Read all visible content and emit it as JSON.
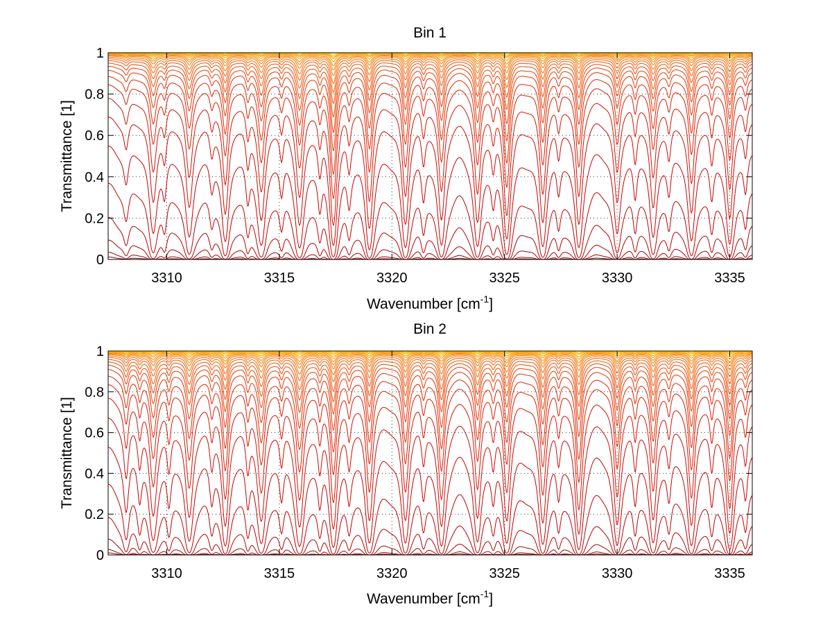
{
  "chart_data": [
    {
      "type": "line",
      "title": "Bin 1",
      "xlabel": "Wavenumber [cm",
      "xlabel_sup": "-1",
      "xlabel_end": "]",
      "ylabel": "Transmittance [1]",
      "xlim": [
        3307.4,
        3336.0
      ],
      "ylim": [
        0,
        1
      ],
      "xticks": [
        3310,
        3315,
        3320,
        3325,
        3330,
        3335
      ],
      "xtick_labels": [
        "3310",
        "3315",
        "3320",
        "3325",
        "3330",
        "3335"
      ],
      "yticks": [
        0,
        0.2,
        0.4,
        0.6,
        0.8,
        1
      ],
      "ytick_labels": [
        "0",
        "0.2",
        "0.4",
        "0.6",
        "0.8",
        "1"
      ],
      "grid": true,
      "grid_style": "dotted",
      "legend": "none",
      "line_colors": [
        "#8b0000",
        "#9a0000",
        "#a80000",
        "#b50000",
        "#bf0000",
        "#c80000",
        "#cf0800",
        "#d51200",
        "#db1c00",
        "#e02600",
        "#e43000",
        "#e83b00",
        "#eb4600",
        "#ee5100",
        "#f05c00",
        "#f26700",
        "#f47200",
        "#f57e00",
        "#f68a00",
        "#f79600",
        "#f8a200",
        "#f9ae00",
        "#fab900",
        "#fbc500"
      ],
      "series_continuum": [
        0.012,
        0.035,
        0.095,
        0.205,
        0.37,
        0.55,
        0.69,
        0.78,
        0.845,
        0.885,
        0.915,
        0.935,
        0.95,
        0.962,
        0.971,
        0.978,
        0.984,
        0.988,
        0.991,
        0.994,
        0.996,
        0.997,
        0.998,
        0.999
      ],
      "absorption_lines": [
        {
          "x": 3308.2,
          "depth": 0.2,
          "width": 0.12
        },
        {
          "x": 3309.4,
          "depth": 0.75,
          "width": 0.16
        },
        {
          "x": 3309.9,
          "depth": 0.25,
          "width": 0.1
        },
        {
          "x": 3311.0,
          "depth": 0.85,
          "width": 0.16
        },
        {
          "x": 3312.0,
          "depth": 0.2,
          "width": 0.1
        },
        {
          "x": 3312.6,
          "depth": 0.95,
          "width": 0.14
        },
        {
          "x": 3313.6,
          "depth": 0.3,
          "width": 0.1
        },
        {
          "x": 3314.2,
          "depth": 1.05,
          "width": 0.16
        },
        {
          "x": 3315.1,
          "depth": 0.25,
          "width": 0.1
        },
        {
          "x": 3315.9,
          "depth": 1.15,
          "width": 0.16
        },
        {
          "x": 3316.8,
          "depth": 0.35,
          "width": 0.1
        },
        {
          "x": 3317.4,
          "depth": 1.9,
          "width": 0.14
        },
        {
          "x": 3318.1,
          "depth": 0.3,
          "width": 0.1
        },
        {
          "x": 3319.0,
          "depth": 1.25,
          "width": 0.14
        },
        {
          "x": 3320.6,
          "depth": 1.15,
          "width": 0.14
        },
        {
          "x": 3321.4,
          "depth": 0.3,
          "width": 0.1
        },
        {
          "x": 3322.2,
          "depth": 1.05,
          "width": 0.14
        },
        {
          "x": 3323.8,
          "depth": 1.1,
          "width": 0.14
        },
        {
          "x": 3324.5,
          "depth": 0.3,
          "width": 0.1
        },
        {
          "x": 3325.1,
          "depth": 1.6,
          "width": 0.14
        },
        {
          "x": 3326.7,
          "depth": 1.1,
          "width": 0.14
        },
        {
          "x": 3327.4,
          "depth": 0.25,
          "width": 0.1
        },
        {
          "x": 3328.3,
          "depth": 1.15,
          "width": 0.14
        },
        {
          "x": 3330.0,
          "depth": 0.75,
          "width": 0.14
        },
        {
          "x": 3330.8,
          "depth": 0.3,
          "width": 0.1
        },
        {
          "x": 3331.6,
          "depth": 0.85,
          "width": 0.14
        },
        {
          "x": 3332.3,
          "depth": 0.25,
          "width": 0.1
        },
        {
          "x": 3333.3,
          "depth": 0.95,
          "width": 0.14
        },
        {
          "x": 3334.2,
          "depth": 0.3,
          "width": 0.1
        },
        {
          "x": 3335.0,
          "depth": 1.05,
          "width": 0.14
        },
        {
          "x": 3335.7,
          "depth": 0.25,
          "width": 0.1
        }
      ]
    },
    {
      "type": "line",
      "title": "Bin 2",
      "xlabel": "Wavenumber [cm",
      "xlabel_sup": "-1",
      "xlabel_end": "]",
      "ylabel": "Transmittance [1]",
      "xlim": [
        3307.4,
        3336.0
      ],
      "ylim": [
        0,
        1
      ],
      "xticks": [
        3310,
        3315,
        3320,
        3325,
        3330,
        3335
      ],
      "xtick_labels": [
        "3310",
        "3315",
        "3320",
        "3325",
        "3330",
        "3335"
      ],
      "yticks": [
        0,
        0.2,
        0.4,
        0.6,
        0.8,
        1
      ],
      "ytick_labels": [
        "0",
        "0.2",
        "0.4",
        "0.6",
        "0.8",
        "1"
      ],
      "grid": true,
      "grid_style": "dotted",
      "legend": "none",
      "line_colors": [
        "#8b0000",
        "#9a0000",
        "#a80000",
        "#b50000",
        "#bf0000",
        "#c80000",
        "#cf0800",
        "#d51200",
        "#db1c00",
        "#e02600",
        "#e43000",
        "#e83b00",
        "#eb4600",
        "#ee5100",
        "#f05c00",
        "#f26700",
        "#f47200",
        "#f57e00",
        "#f68a00",
        "#f79600",
        "#f8a200",
        "#f9ae00",
        "#fab900",
        "#fbc500"
      ],
      "series_continuum": [
        0.012,
        0.03,
        0.085,
        0.195,
        0.36,
        0.54,
        0.68,
        0.775,
        0.84,
        0.88,
        0.912,
        0.933,
        0.948,
        0.96,
        0.97,
        0.977,
        0.983,
        0.987,
        0.99,
        0.993,
        0.995,
        0.997,
        0.998,
        0.999
      ],
      "absorption_lines": [
        {
          "x": 3308.2,
          "depth": 0.45,
          "width": 0.12
        },
        {
          "x": 3308.8,
          "depth": 0.3,
          "width": 0.1
        },
        {
          "x": 3309.4,
          "depth": 1.0,
          "width": 0.16
        },
        {
          "x": 3310.1,
          "depth": 0.35,
          "width": 0.1
        },
        {
          "x": 3311.0,
          "depth": 1.05,
          "width": 0.16
        },
        {
          "x": 3312.0,
          "depth": 0.3,
          "width": 0.1
        },
        {
          "x": 3312.6,
          "depth": 1.25,
          "width": 0.14
        },
        {
          "x": 3313.6,
          "depth": 0.35,
          "width": 0.1
        },
        {
          "x": 3314.2,
          "depth": 1.1,
          "width": 0.16
        },
        {
          "x": 3315.1,
          "depth": 0.3,
          "width": 0.1
        },
        {
          "x": 3315.9,
          "depth": 1.25,
          "width": 0.16
        },
        {
          "x": 3316.8,
          "depth": 0.35,
          "width": 0.1
        },
        {
          "x": 3317.4,
          "depth": 1.3,
          "width": 0.14
        },
        {
          "x": 3318.1,
          "depth": 0.3,
          "width": 0.1
        },
        {
          "x": 3319.0,
          "depth": 1.1,
          "width": 0.14
        },
        {
          "x": 3320.6,
          "depth": 1.1,
          "width": 0.14
        },
        {
          "x": 3321.4,
          "depth": 0.3,
          "width": 0.1
        },
        {
          "x": 3322.2,
          "depth": 1.25,
          "width": 0.14
        },
        {
          "x": 3323.8,
          "depth": 1.05,
          "width": 0.14
        },
        {
          "x": 3324.5,
          "depth": 0.3,
          "width": 0.1
        },
        {
          "x": 3325.1,
          "depth": 1.1,
          "width": 0.14
        },
        {
          "x": 3326.7,
          "depth": 1.15,
          "width": 0.14
        },
        {
          "x": 3327.4,
          "depth": 0.3,
          "width": 0.1
        },
        {
          "x": 3328.3,
          "depth": 1.5,
          "width": 0.14
        },
        {
          "x": 3330.0,
          "depth": 1.2,
          "width": 0.14
        },
        {
          "x": 3330.8,
          "depth": 0.35,
          "width": 0.1
        },
        {
          "x": 3331.6,
          "depth": 1.1,
          "width": 0.14
        },
        {
          "x": 3332.3,
          "depth": 0.3,
          "width": 0.1
        },
        {
          "x": 3333.3,
          "depth": 1.25,
          "width": 0.14
        },
        {
          "x": 3334.2,
          "depth": 0.35,
          "width": 0.1
        },
        {
          "x": 3335.0,
          "depth": 1.5,
          "width": 0.14
        },
        {
          "x": 3335.7,
          "depth": 0.3,
          "width": 0.1
        }
      ]
    }
  ]
}
